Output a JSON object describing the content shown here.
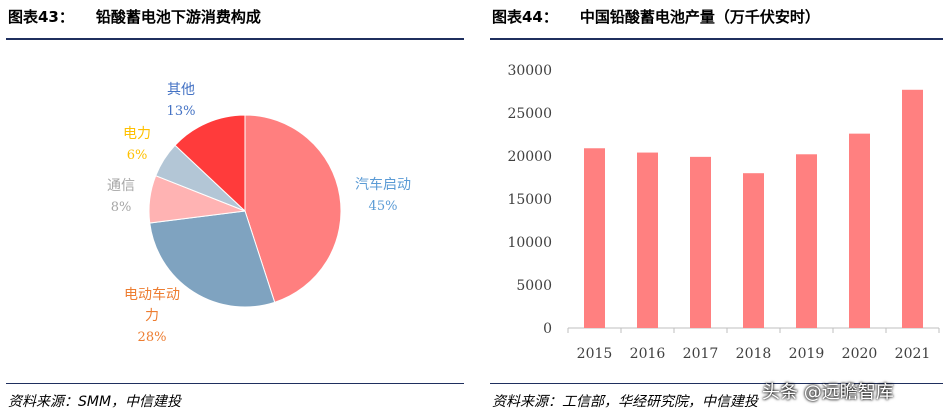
{
  "left": {
    "title_num": "图表43：",
    "title_text": "铅酸蓄电池下游消费构成",
    "source": "资料来源：SMM，中信建投"
  },
  "right": {
    "title_num": "图表44：",
    "title_text": "中国铅酸蓄电池产量（万千伏安时）",
    "source": "资料来源：工信部，华经研究院，中信建投"
  },
  "watermark": "头条 @远瞻智库",
  "chart_data": [
    {
      "type": "pie",
      "title": "",
      "slices": [
        {
          "label": "汽车启动",
          "value": 45,
          "value_label": "45%",
          "color": "#ff7f7f",
          "label_color": "#5b9bd5"
        },
        {
          "label": "电动车动力",
          "value": 28,
          "value_label": "28%",
          "color": "#7fa3c0",
          "label_color": "#ed7d31"
        },
        {
          "label": "通信",
          "value": 8,
          "value_label": "8%",
          "color": "#ffb3b3",
          "label_color": "#a6a6a6"
        },
        {
          "label": "电力",
          "value": 6,
          "value_label": "6%",
          "color": "#b3c6d6",
          "label_color": "#ffc000"
        },
        {
          "label": "其他",
          "value": 13,
          "value_label": "13%",
          "color": "#ff3b3b",
          "label_color": "#4472c4"
        }
      ],
      "start_angle": "12 o'clock, clockwise"
    },
    {
      "type": "bar",
      "title": "",
      "categories": [
        "2015",
        "2016",
        "2017",
        "2018",
        "2019",
        "2020",
        "2021"
      ],
      "values": [
        20900,
        20400,
        19900,
        18000,
        20200,
        22600,
        27700
      ],
      "yticks": [
        0,
        5000,
        10000,
        15000,
        20000,
        25000,
        30000
      ],
      "ylim": [
        0,
        30000
      ],
      "xlabel": "",
      "ylabel": "",
      "grid": false,
      "bar_color": "#ff8080"
    }
  ]
}
